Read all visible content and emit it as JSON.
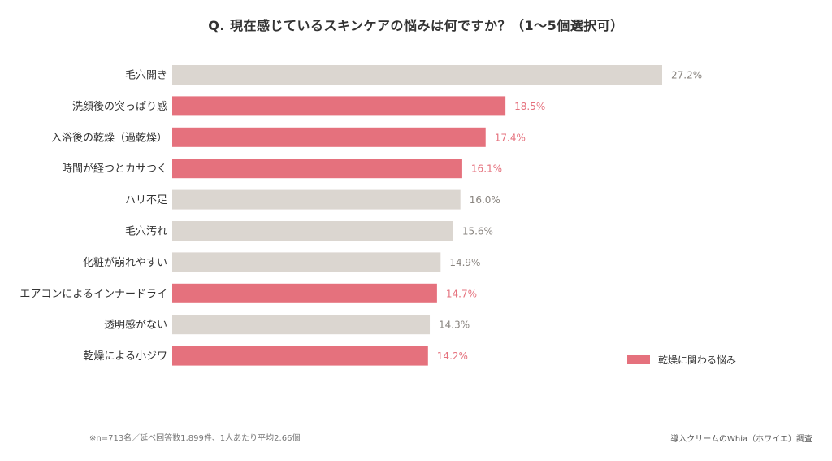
{
  "chart_data": {
    "type": "bar",
    "orientation": "horizontal",
    "title": "Q. 現在感じているスキンケアの悩みは何ですか？（1〜5個選択可）",
    "categories": [
      "毛穴開き",
      "洗顔後の突っぱり感",
      "入浴後の乾燥（過乾燥）",
      "時間が経つとカサつく",
      "ハリ不足",
      "毛穴汚れ",
      "化粧が崩れやすい",
      "エアコンによるインナードライ",
      "透明感がない",
      "乾燥による小ジワ"
    ],
    "values": [
      27.2,
      18.5,
      17.4,
      16.1,
      16.0,
      15.6,
      14.9,
      14.7,
      14.3,
      14.2
    ],
    "value_labels": [
      "27.2%",
      "18.5%",
      "17.4%",
      "16.1%",
      "16.0%",
      "15.6%",
      "14.9%",
      "14.7%",
      "14.3%",
      "14.2%"
    ],
    "highlighted": [
      false,
      true,
      true,
      true,
      false,
      false,
      false,
      true,
      false,
      true
    ],
    "xlim": [
      0,
      27.2
    ],
    "grid": false,
    "legend": {
      "label": "乾燥に関わる悩み",
      "placement": "bottom-right"
    }
  },
  "colors": {
    "highlight": "#e5717d",
    "default": "#dbd6d0",
    "highlight_text": "#e5717d",
    "default_text": "#8a8580"
  },
  "footnote": "※n=713名／延べ回答数1,899件、1人あたり平均2.66個",
  "source": "導入クリームのWhia（ホワイエ）調査"
}
